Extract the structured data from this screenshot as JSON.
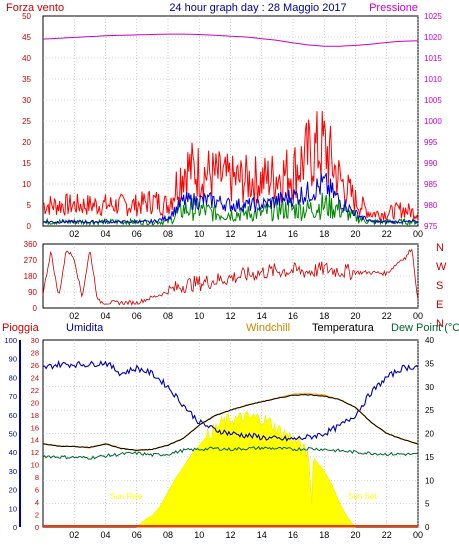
{
  "chart_data": [
    {
      "type": "line",
      "title": "24 hour graph day : 28 Maggio 2017",
      "left_label": "Forza vento",
      "right_label": "Pressione",
      "x_ticks": [
        "02",
        "04",
        "06",
        "08",
        "10",
        "12",
        "14",
        "16",
        "18",
        "20",
        "22",
        "00"
      ],
      "y_left_ticks": [
        "0",
        "5",
        "10",
        "15",
        "20",
        "25",
        "30",
        "35",
        "40",
        "45",
        "50"
      ],
      "y_right_ticks": [
        "975",
        "980",
        "985",
        "990",
        "995",
        "1000",
        "1005",
        "1010",
        "1015",
        "1020",
        "1025"
      ],
      "ylim_left": [
        0,
        50
      ],
      "ylim_right": [
        975,
        1025
      ],
      "grid": true,
      "series": [
        {
          "role": "pressure",
          "axis": "right",
          "color": "#cc00cc",
          "x": [
            0,
            1,
            2,
            3,
            4,
            5,
            6,
            7,
            8,
            9,
            10,
            11,
            12,
            13,
            14,
            15,
            16,
            17,
            18,
            19,
            20,
            21,
            22,
            23,
            24
          ],
          "values": [
            1019.5,
            1019.7,
            1019.9,
            1020.1,
            1020.3,
            1020.4,
            1020.5,
            1020.6,
            1020.7,
            1020.7,
            1020.6,
            1020.4,
            1020.2,
            1020.0,
            1019.6,
            1019.2,
            1018.6,
            1018.1,
            1017.8,
            1017.8,
            1018.0,
            1018.3,
            1018.7,
            1019.0,
            1019.1
          ]
        },
        {
          "role": "wind-gust",
          "axis": "left",
          "color": "#ff0000",
          "x": [
            0,
            1,
            2,
            3,
            4,
            5,
            6,
            7,
            8,
            9,
            10,
            11,
            12,
            13,
            14,
            15,
            16,
            17,
            18,
            19,
            20,
            21,
            22,
            23,
            24
          ],
          "values": [
            5,
            5,
            5,
            5,
            5,
            5,
            5,
            6,
            5,
            14,
            13,
            12,
            11,
            11,
            11,
            12,
            13,
            17,
            19,
            11,
            6,
            3,
            3,
            4,
            3
          ]
        },
        {
          "role": "wind-avg",
          "axis": "left",
          "color": "#0000cc",
          "x": [
            0,
            1,
            2,
            3,
            4,
            5,
            6,
            7,
            8,
            9,
            10,
            11,
            12,
            13,
            14,
            15,
            16,
            17,
            18,
            19,
            20,
            21,
            22,
            23,
            24
          ],
          "values": [
            1,
            1,
            1,
            1,
            1,
            1,
            1,
            1,
            2,
            6,
            6,
            6,
            5,
            5,
            5,
            6,
            7,
            8,
            10,
            6,
            3,
            1,
            1,
            1,
            1
          ]
        },
        {
          "role": "wind-min",
          "axis": "left",
          "color": "#008800",
          "x": [
            0,
            1,
            2,
            3,
            4,
            5,
            6,
            7,
            8,
            9,
            10,
            11,
            12,
            13,
            14,
            15,
            16,
            17,
            18,
            19,
            20,
            21,
            22,
            23,
            24
          ],
          "values": [
            1,
            1,
            1,
            1,
            1,
            1,
            1,
            1,
            1,
            4,
            4,
            3,
            3,
            3,
            3,
            4,
            4,
            4,
            5,
            4,
            2,
            1,
            1,
            1,
            1
          ]
        }
      ]
    },
    {
      "type": "line",
      "y_left_ticks": [
        "0",
        "90",
        "180",
        "270",
        "360"
      ],
      "ylim_left": [
        0,
        360
      ],
      "right_labels": [
        "N",
        "W",
        "S",
        "E",
        "N"
      ],
      "x_ticks": [
        "02",
        "04",
        "06",
        "08",
        "10",
        "12",
        "14",
        "16",
        "18",
        "20",
        "22",
        "00"
      ],
      "series": [
        {
          "role": "wind-direction",
          "color": "#cc0000",
          "x": [
            0,
            0.5,
            1,
            1.5,
            2,
            2.5,
            3,
            3.5,
            4,
            5,
            6,
            7,
            8,
            9,
            10,
            11,
            12,
            13,
            14,
            15,
            16,
            17,
            18,
            19,
            20,
            21,
            22,
            23,
            23.2,
            23.6,
            24
          ],
          "values": [
            80,
            320,
            60,
            330,
            280,
            60,
            330,
            40,
            30,
            30,
            30,
            60,
            90,
            130,
            140,
            155,
            170,
            185,
            200,
            210,
            210,
            205,
            220,
            210,
            200,
            200,
            195,
            280,
            280,
            340,
            40
          ]
        }
      ]
    },
    {
      "type": "line",
      "header_labels": [
        "Pioggia",
        "Umidita",
        "Windchill",
        "Temperatura",
        "Dew Point (°C"
      ],
      "annotations": [
        "Sun Rise",
        "Sun Set"
      ],
      "x_ticks": [
        "02",
        "04",
        "06",
        "08",
        "10",
        "12",
        "14",
        "16",
        "18",
        "20",
        "22",
        "00"
      ],
      "y_outer_ticks": [
        "0",
        "10",
        "20",
        "30",
        "40",
        "50",
        "60",
        "70",
        "80",
        "90",
        "100"
      ],
      "y_inner_ticks": [
        "0",
        "2",
        "4",
        "6",
        "8",
        "10",
        "12",
        "14",
        "16",
        "18",
        "20",
        "22",
        "24",
        "26",
        "28",
        "30"
      ],
      "y_right_ticks": [
        "0",
        "5",
        "10",
        "15",
        "20",
        "25",
        "30",
        "35",
        "40"
      ],
      "ylim_humidity": [
        0,
        100
      ],
      "ylim_rain": [
        0,
        30
      ],
      "ylim_temp": [
        0,
        40
      ],
      "series": [
        {
          "role": "humidity",
          "axis": "outer",
          "color": "#0000aa",
          "x": [
            0,
            1,
            2,
            3,
            4,
            5,
            6,
            7,
            8,
            9,
            10,
            11,
            12,
            13,
            14,
            15,
            16,
            17,
            18,
            19,
            20,
            21,
            22,
            23,
            24
          ],
          "values": [
            85,
            87,
            87,
            87,
            88,
            82,
            85,
            82,
            75,
            65,
            56,
            52,
            50,
            49,
            48,
            47,
            47,
            48,
            50,
            54,
            60,
            72,
            80,
            85,
            86
          ]
        },
        {
          "role": "temperature",
          "axis": "right",
          "color": "#000000",
          "x": [
            0,
            1,
            2,
            3,
            4,
            5,
            6,
            7,
            8,
            9,
            10,
            11,
            12,
            13,
            14,
            15,
            16,
            17,
            18,
            19,
            20,
            21,
            22,
            23,
            24
          ],
          "values": [
            17.8,
            17.3,
            17.2,
            17.0,
            17.8,
            16.8,
            16.4,
            16.6,
            17.5,
            19.0,
            21.8,
            23.8,
            25.0,
            26.0,
            26.8,
            27.5,
            28.2,
            28.3,
            28.0,
            27.2,
            25.6,
            22.4,
            20.0,
            18.8,
            17.8
          ]
        },
        {
          "role": "windchill",
          "axis": "right",
          "color": "#ff9900",
          "x": [
            0,
            1,
            2,
            3,
            4,
            5,
            6,
            7,
            8,
            9,
            10,
            11,
            12,
            13,
            14,
            15,
            16,
            17,
            18,
            19,
            20,
            21,
            22,
            23,
            24
          ],
          "values": [
            17.8,
            17.3,
            17.2,
            17.0,
            17.8,
            16.8,
            16.4,
            16.6,
            17.5,
            19.0,
            21.8,
            23.8,
            25.0,
            26.0,
            26.8,
            27.6,
            28.4,
            28.5,
            28.2,
            27.2,
            25.6,
            22.4,
            20.0,
            18.8,
            17.8
          ]
        },
        {
          "role": "dew-point",
          "axis": "right",
          "color": "#006633",
          "x": [
            0,
            1,
            2,
            3,
            4,
            5,
            6,
            7,
            8,
            9,
            10,
            11,
            12,
            13,
            14,
            15,
            16,
            17,
            18,
            19,
            20,
            21,
            22,
            23,
            24
          ],
          "values": [
            15.2,
            15.0,
            14.9,
            14.8,
            15.2,
            15.6,
            15.8,
            15.4,
            15.6,
            16.4,
            16.6,
            16.8,
            16.6,
            16.8,
            16.9,
            16.8,
            16.6,
            16.8,
            16.6,
            16.3,
            16.0,
            15.8,
            15.6,
            15.6,
            15.5
          ]
        },
        {
          "role": "solar-radiation",
          "axis": "right",
          "color": "#ffff00",
          "x": [
            6,
            6.5,
            7,
            7.5,
            8,
            8.5,
            9,
            9.5,
            10,
            10.5,
            11,
            11.5,
            12,
            12.5,
            13,
            13.5,
            14,
            14.5,
            15,
            15.5,
            16,
            16.5,
            17,
            17.2,
            17.3,
            17.5,
            18,
            18.5,
            19,
            19.5,
            20
          ],
          "values": [
            0,
            1.5,
            2.5,
            4.5,
            7.5,
            10.5,
            13,
            15.5,
            17.5,
            19.5,
            21,
            22.5,
            23,
            23.2,
            23.5,
            23.4,
            23.2,
            22.5,
            21,
            20,
            19,
            17.5,
            15,
            5,
            15,
            14,
            12,
            9,
            5,
            2,
            0
          ]
        },
        {
          "role": "rain",
          "axis": "inner",
          "color": "#ff3300",
          "x": [
            0,
            24
          ],
          "values": [
            0,
            0
          ]
        }
      ]
    }
  ]
}
